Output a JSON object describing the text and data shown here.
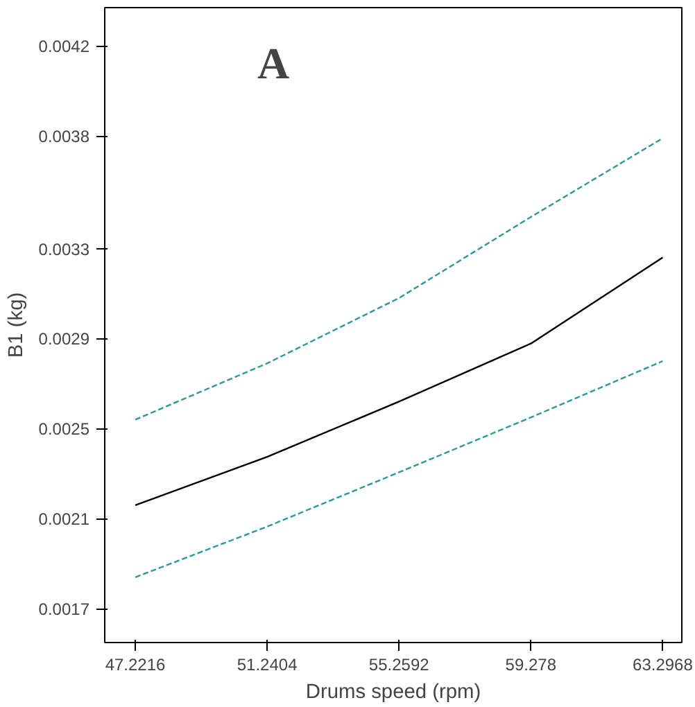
{
  "chart_data": {
    "type": "line",
    "xlabel": "Drums speed (rpm)",
    "ylabel": "B1 (kg)",
    "annotations": [
      "A"
    ],
    "x": [
      47.2216,
      51.2404,
      55.2592,
      59.278,
      63.2968
    ],
    "series": [
      {
        "color": "#2a9a9a",
        "line_style": "dashed",
        "values": [
          0.00254,
          0.00279,
          0.00308,
          0.00344,
          0.00379
        ]
      },
      {
        "color": "#000000",
        "line_style": "solid",
        "values": [
          0.00216,
          0.002375,
          0.00262,
          0.002878,
          0.00326
        ]
      },
      {
        "color": "#2a9a9a",
        "line_style": "dashed",
        "values": [
          0.00184,
          0.002065,
          0.002306,
          0.00255,
          0.0028
        ]
      }
    ],
    "xlim": [
      46.29,
      63.88
    ],
    "ylim": [
      0.00155,
      0.00437
    ],
    "xticks": [
      47.2216,
      51.2404,
      55.2592,
      59.278,
      63.2968
    ],
    "yticks": [
      0.0017,
      0.0021,
      0.0025,
      0.0029,
      0.0033,
      0.0038,
      0.0042
    ],
    "grid": false,
    "marker": "none"
  }
}
